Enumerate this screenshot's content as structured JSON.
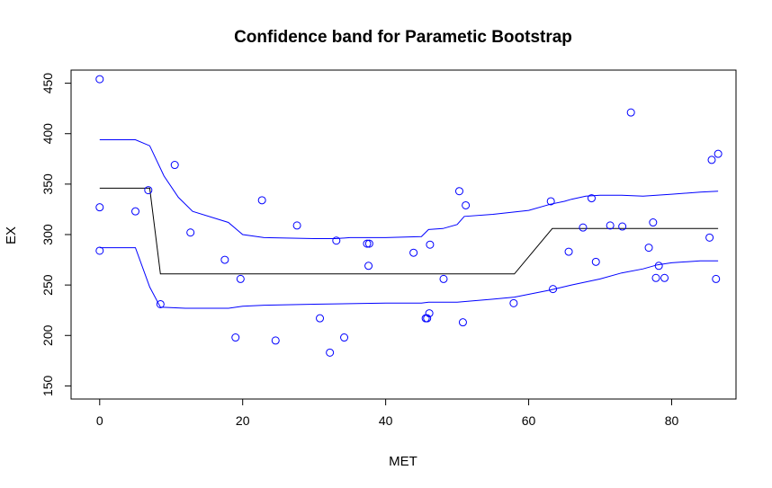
{
  "chart_data": {
    "type": "scatter",
    "title": "Confidence band for Parametic Bootstrap",
    "xlabel": "MET",
    "ylabel": "EX",
    "xlim": [
      -4,
      89
    ],
    "ylim": [
      137,
      463
    ],
    "xticks": [
      0,
      20,
      40,
      60,
      80
    ],
    "yticks": [
      150,
      200,
      250,
      300,
      350,
      400,
      450
    ],
    "points": {
      "color": "#0000ff",
      "x": [
        0,
        0,
        0,
        5,
        6.8,
        8.5,
        10.5,
        12.7,
        17.5,
        19,
        19.7,
        22.7,
        24.6,
        27.6,
        30.8,
        32.2,
        33.1,
        34.2,
        37.4,
        37.6,
        37.7,
        43.9,
        45.6,
        45.8,
        46.1,
        46.2,
        48.1,
        50.3,
        50.8,
        51.2,
        57.9,
        63.1,
        63.4,
        65.6,
        67.6,
        68.8,
        69.4,
        71.4,
        73.1,
        74.3,
        76.8,
        77.4,
        77.8,
        78.2,
        79.0,
        85.3,
        85.6,
        86.2,
        86.5
      ],
      "y": [
        454,
        327,
        284,
        323,
        344,
        231,
        369,
        302,
        275,
        198,
        256,
        334,
        195,
        309,
        217,
        183,
        294,
        198,
        291,
        269,
        291,
        282,
        217,
        217,
        222,
        290,
        256,
        343,
        213,
        329,
        232,
        333,
        246,
        283,
        307,
        336,
        273,
        309,
        308,
        421,
        287,
        312,
        257,
        269,
        257,
        297,
        374,
        256,
        380
      ]
    },
    "series": [
      {
        "color": "#000000",
        "x": [
          0,
          7,
          8.5,
          58,
          63.3,
          86.5
        ],
        "y": [
          346,
          346,
          261,
          261,
          306,
          306
        ]
      },
      {
        "color": "#0000ff",
        "x": [
          0,
          5,
          7,
          9,
          11,
          13,
          18,
          20,
          23,
          30,
          33,
          35,
          40,
          45,
          46,
          48,
          50,
          51,
          55,
          60,
          63,
          65,
          66,
          68,
          70,
          73,
          76,
          80,
          84,
          86.5
        ],
        "y": [
          394,
          394,
          388,
          358,
          337,
          323,
          312,
          300,
          297,
          296,
          296,
          297,
          297,
          298,
          305,
          306,
          310,
          318,
          320,
          324,
          330,
          333,
          335,
          338,
          339,
          339,
          338,
          340,
          342,
          343
        ]
      },
      {
        "color": "#0000ff",
        "x": [
          0,
          5,
          7,
          8.5,
          12,
          18,
          20,
          23,
          30,
          40,
          45,
          46,
          50,
          55,
          58,
          63,
          66,
          70,
          73,
          76,
          78,
          80,
          84,
          86.5
        ],
        "y": [
          287,
          287,
          248,
          228,
          227,
          227,
          229,
          230,
          231,
          232,
          232,
          233,
          233,
          236,
          238,
          245,
          250,
          256,
          262,
          266,
          270,
          272,
          274,
          274
        ]
      }
    ],
    "grid": false,
    "legend": "none"
  }
}
